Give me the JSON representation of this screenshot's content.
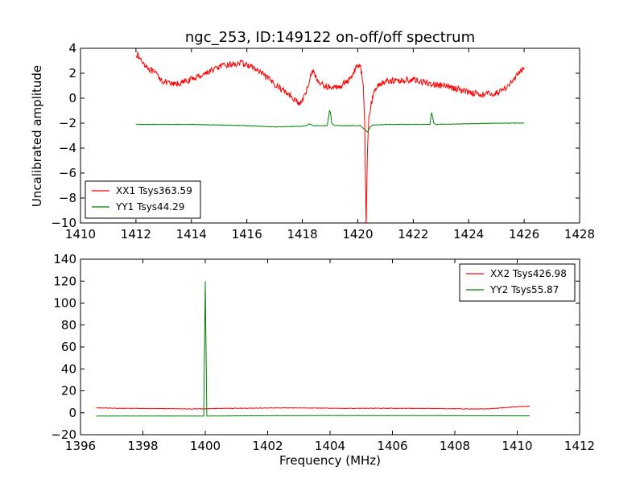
{
  "colors": {
    "red": "#ff0000",
    "green": "#008000"
  },
  "chart_data": [
    {
      "type": "line",
      "title": "ngc_253, ID:149122 on-off/off spectrum",
      "xlabel": "",
      "ylabel": "Uncalibrated amplitude",
      "xlim": [
        1410,
        1428
      ],
      "ylim": [
        -10,
        4
      ],
      "xticks": [
        "1410",
        "1412",
        "1414",
        "1416",
        "1418",
        "1420",
        "1422",
        "1424",
        "1426",
        "1428"
      ],
      "yticks": [
        "−10",
        "−8",
        "−6",
        "−4",
        "−2",
        "0",
        "2",
        "4"
      ],
      "legend_position": "lower-left",
      "series": [
        {
          "name": "XX1 Tsys363.59",
          "color": "#ff0000",
          "noise": 0.25,
          "x": [
            1412.0,
            1412.2,
            1412.5,
            1412.8,
            1413.0,
            1413.3,
            1413.6,
            1414.0,
            1414.5,
            1415.0,
            1415.4,
            1415.8,
            1416.1,
            1416.4,
            1416.8,
            1417.2,
            1417.6,
            1417.9,
            1418.1,
            1418.3,
            1418.4,
            1418.55,
            1418.8,
            1419.1,
            1419.4,
            1419.7,
            1420.0,
            1420.1,
            1420.2,
            1420.25,
            1420.3,
            1420.35,
            1420.4,
            1420.45,
            1420.55,
            1420.7,
            1421.0,
            1421.5,
            1422.0,
            1422.5,
            1423.0,
            1423.5,
            1424.0,
            1424.5,
            1425.0,
            1425.3,
            1425.6,
            1426.0
          ],
          "y": [
            3.6,
            3.0,
            2.3,
            1.8,
            1.3,
            1.1,
            1.2,
            1.5,
            2.0,
            2.5,
            2.7,
            2.8,
            2.6,
            2.2,
            1.5,
            0.8,
            0.2,
            -0.5,
            0.2,
            1.8,
            2.3,
            1.3,
            1.0,
            0.8,
            1.0,
            1.5,
            2.7,
            2.4,
            1.2,
            -2.0,
            -10.0,
            -4.0,
            -1.5,
            -1.0,
            0.3,
            1.0,
            1.4,
            1.4,
            1.5,
            1.2,
            1.0,
            0.8,
            0.5,
            0.3,
            0.4,
            0.8,
            1.4,
            2.5
          ]
        },
        {
          "name": "YY1 Tsys44.29",
          "color": "#008000",
          "noise": 0.02,
          "x": [
            1412.0,
            1414.0,
            1416.0,
            1417.0,
            1418.0,
            1418.15,
            1418.25,
            1418.4,
            1418.9,
            1418.98,
            1419.02,
            1419.06,
            1419.15,
            1419.8,
            1420.1,
            1420.25,
            1420.35,
            1420.45,
            1420.55,
            1421.0,
            1422.0,
            1422.6,
            1422.66,
            1422.7,
            1422.74,
            1422.8,
            1424.0,
            1425.0,
            1426.0
          ],
          "y": [
            -2.1,
            -2.1,
            -2.2,
            -2.3,
            -2.25,
            -2.2,
            -2.05,
            -2.2,
            -2.2,
            -1.0,
            -1.2,
            -2.0,
            -2.2,
            -2.2,
            -2.2,
            -2.5,
            -2.7,
            -2.3,
            -2.15,
            -2.1,
            -2.1,
            -2.1,
            -1.15,
            -1.5,
            -2.0,
            -2.1,
            -2.05,
            -2.0,
            -2.0
          ]
        }
      ]
    },
    {
      "type": "line",
      "title": "",
      "xlabel": "Frequency (MHz)",
      "ylabel": "",
      "xlim": [
        1396,
        1412
      ],
      "ylim": [
        -20,
        140
      ],
      "xticks": [
        "1396",
        "1398",
        "1400",
        "1402",
        "1404",
        "1406",
        "1408",
        "1410",
        "1412"
      ],
      "yticks": [
        "−20",
        "0",
        "20",
        "40",
        "60",
        "80",
        "100",
        "120",
        "140"
      ],
      "legend_position": "upper-right",
      "series": [
        {
          "name": "XX2 Tsys426.98",
          "color": "#ff0000",
          "noise": 0.25,
          "x": [
            1396.5,
            1397.5,
            1398.5,
            1399.5,
            1400.0,
            1400.5,
            1401.5,
            1402.5,
            1403.5,
            1404.5,
            1405.5,
            1406.5,
            1407.5,
            1408.5,
            1409.0,
            1409.5,
            1410.0,
            1410.4
          ],
          "y": [
            4.5,
            4.0,
            3.8,
            3.5,
            3.6,
            4.0,
            4.2,
            4.5,
            4.3,
            4.0,
            4.1,
            4.0,
            3.8,
            3.5,
            3.4,
            4.5,
            5.5,
            6.0
          ]
        },
        {
          "name": "YY2 Tsys55.87",
          "color": "#008000",
          "noise": 0.05,
          "x": [
            1396.5,
            1399.0,
            1399.95,
            1400.0,
            1400.05,
            1401.0,
            1404.0,
            1407.0,
            1410.4
          ],
          "y": [
            -3.0,
            -3.0,
            -3.0,
            120.0,
            -3.0,
            -2.8,
            -2.5,
            -2.6,
            -2.8
          ]
        }
      ]
    }
  ]
}
